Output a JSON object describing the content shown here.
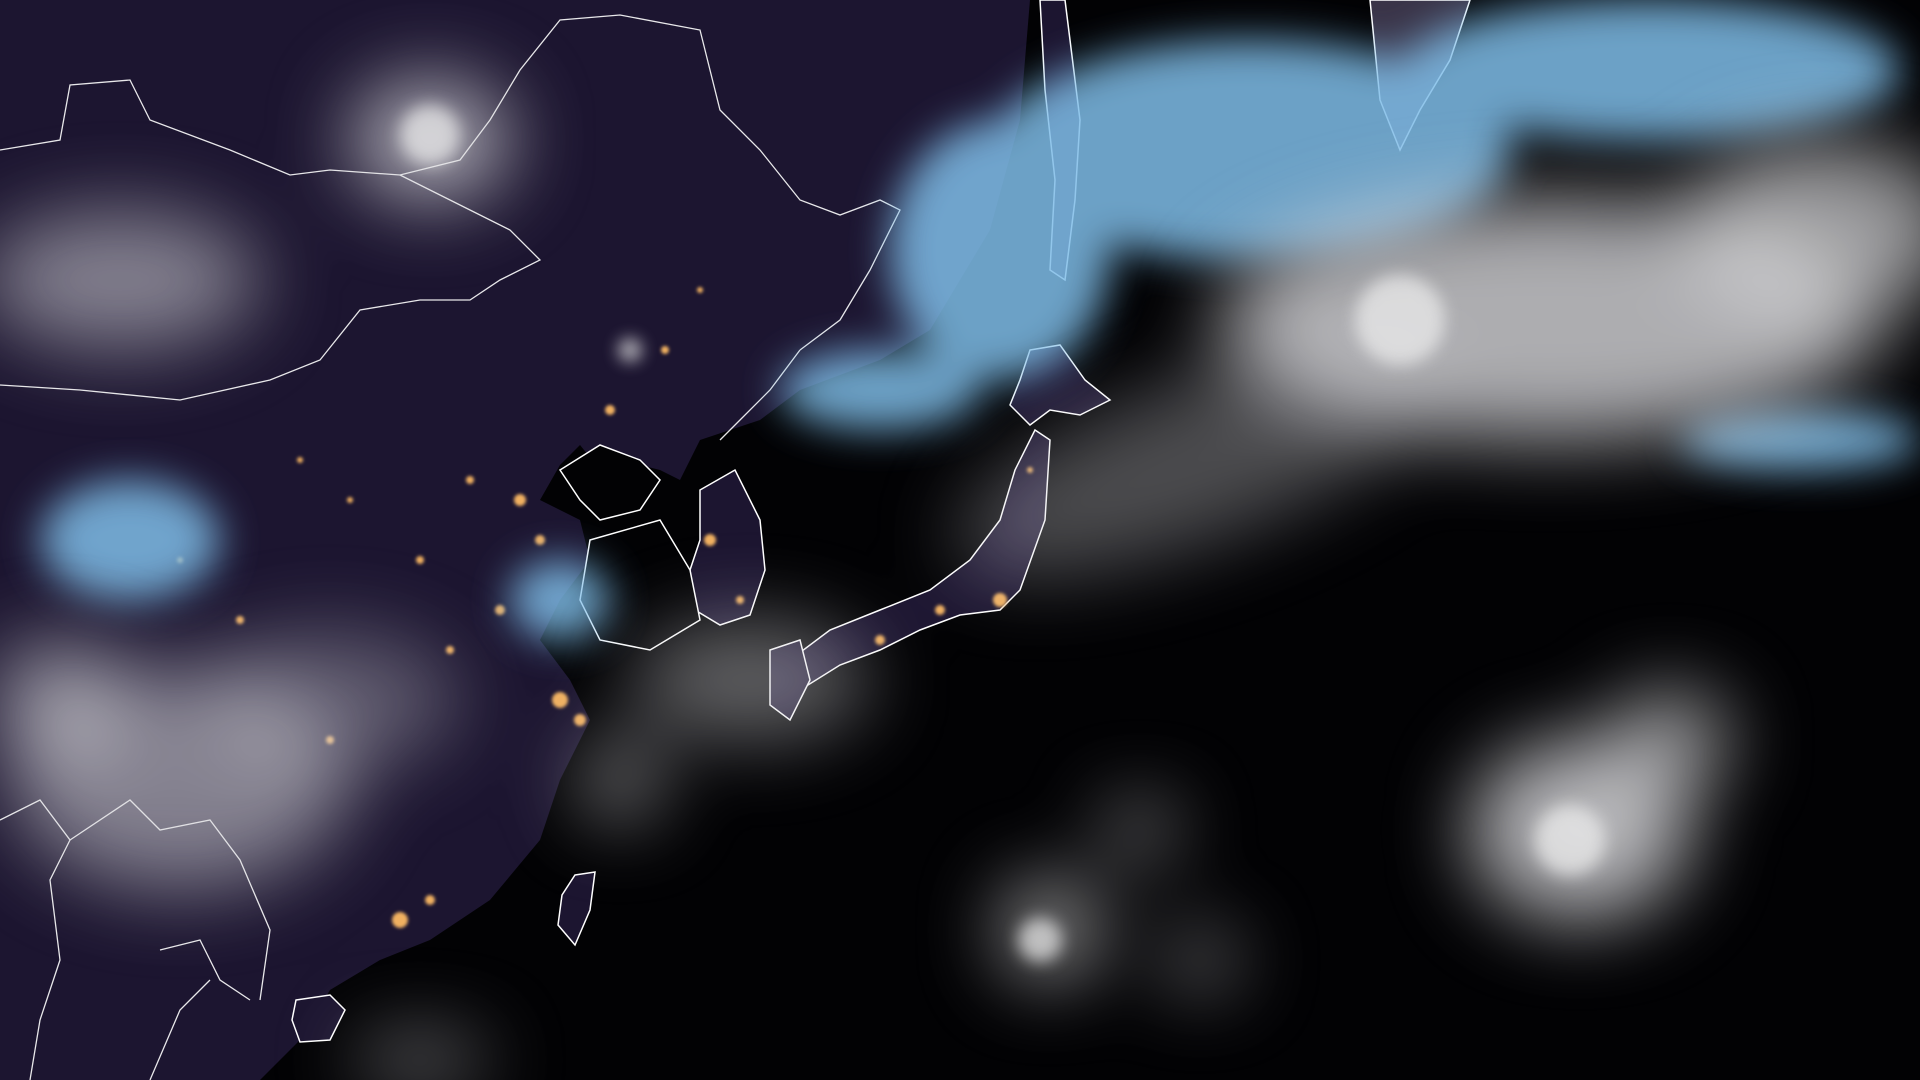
{
  "image": {
    "kind": "night-time satellite composite of East Asia and the Northwest Pacific",
    "colors": {
      "ocean": "#020204",
      "land": "#1c1530",
      "cloud_low": "#d8d8dc",
      "cloud_ice": "#7fbde8",
      "city_lights": "#f0b060",
      "borders": "#ffffff"
    }
  }
}
